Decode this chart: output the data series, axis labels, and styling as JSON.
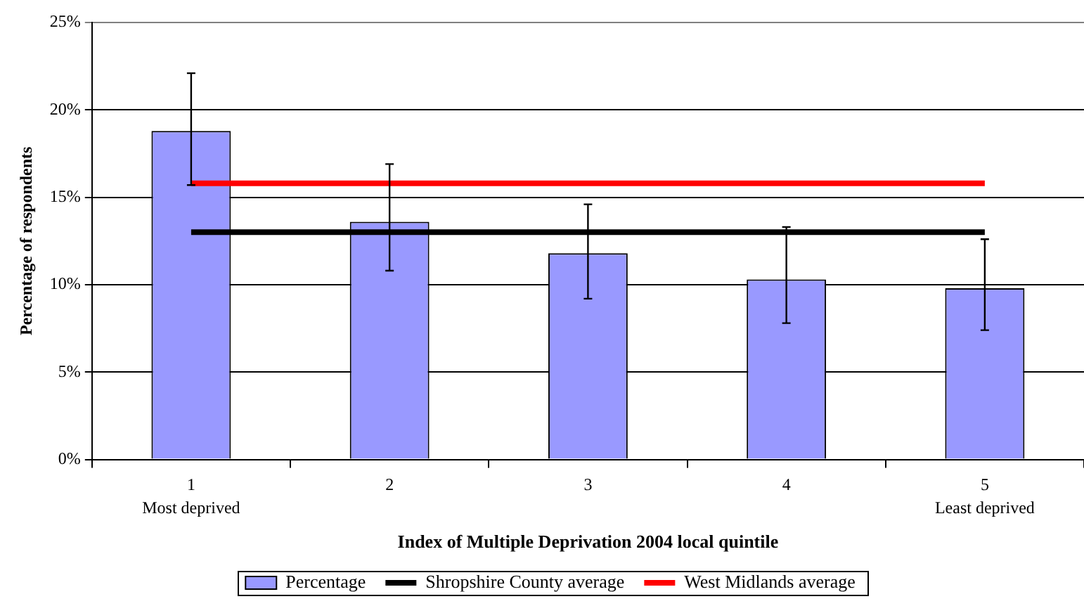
{
  "chart_data": {
    "type": "bar",
    "xlabel": "Index of Multiple Deprivation 2004 local quintile",
    "ylabel": "Percentage of respondents",
    "categories": [
      "1\nMost deprived",
      "2",
      "3",
      "4",
      "5\nLeast deprived"
    ],
    "series": [
      {
        "name": "Percentage",
        "color": "#9999ff",
        "values": [
          18.8,
          13.6,
          11.8,
          10.3,
          9.8
        ],
        "errors": [
          [
            15.7,
            22.1
          ],
          [
            10.8,
            16.9
          ],
          [
            9.2,
            14.6
          ],
          [
            7.8,
            13.3
          ],
          [
            7.4,
            12.6
          ]
        ]
      },
      {
        "name": "Shropshire County average",
        "type": "line",
        "color": "#000000",
        "values": [
          13,
          13,
          13,
          13,
          13
        ]
      },
      {
        "name": "West Midlands average",
        "type": "line",
        "color": "#ff0000",
        "values": [
          15.8,
          15.8,
          15.8,
          15.8,
          15.8
        ]
      }
    ],
    "ylim": [
      0,
      25
    ],
    "yticks": [
      {
        "value": 0,
        "label": "0%"
      },
      {
        "value": 5,
        "label": "5%"
      },
      {
        "value": 10,
        "label": "10%"
      },
      {
        "value": 15,
        "label": "15%"
      },
      {
        "value": 20,
        "label": "20%"
      },
      {
        "value": 25,
        "label": "25%"
      }
    ],
    "grid": "y",
    "legend": "bottom",
    "marker": "none"
  }
}
